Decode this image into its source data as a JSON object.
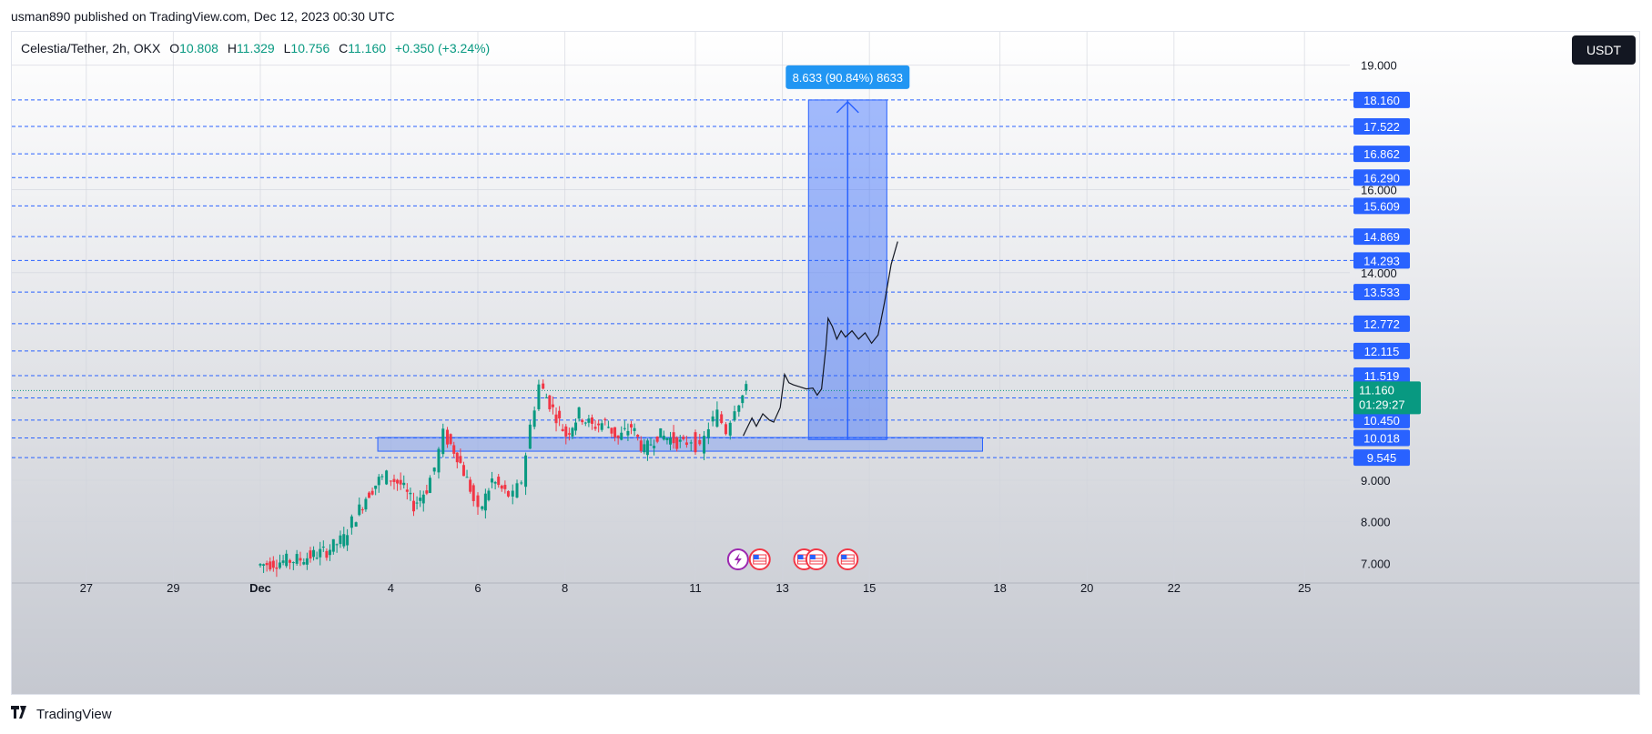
{
  "header": {
    "publish_line": "usman890 published on TradingView.com, Dec 12, 2023 00:30 UTC"
  },
  "legend": {
    "symbol": "Celestia/Tether, 2h, OKX",
    "o_label": "O",
    "o_value": "10.808",
    "h_label": "H",
    "h_value": "11.329",
    "l_label": "L",
    "l_value": "10.756",
    "c_label": "C",
    "c_value": "11.160",
    "change": "+0.350 (+3.24%)"
  },
  "currency_button": "USDT",
  "footer": {
    "brand": "TradingView",
    "logo_icon": "tradingview-logo-icon"
  },
  "colors": {
    "up": "#089981",
    "down": "#f23645",
    "accent": "#2962ff",
    "level_label": "#2962ff",
    "price_tag": "#089981"
  },
  "chart_data": {
    "type": "candlestick",
    "symbol": "Celestia/Tether",
    "interval": "2h",
    "exchange": "OKX",
    "y_axis": {
      "min": 6.7,
      "max": 19.1,
      "ticks": [
        "7.000",
        "8.000",
        "9.000",
        "14.000",
        "16.000",
        "19.000"
      ]
    },
    "x_axis": {
      "ticks": [
        {
          "label": "27",
          "day": -4
        },
        {
          "label": "29",
          "day": -2
        },
        {
          "label": "Dec",
          "day": 0
        },
        {
          "label": "4",
          "day": 3
        },
        {
          "label": "6",
          "day": 5
        },
        {
          "label": "8",
          "day": 7
        },
        {
          "label": "11",
          "day": 10
        },
        {
          "label": "13",
          "day": 12
        },
        {
          "label": "15",
          "day": 14
        },
        {
          "label": "18",
          "day": 17
        },
        {
          "label": "20",
          "day": 19
        },
        {
          "label": "22",
          "day": 21
        },
        {
          "label": "25",
          "day": 24
        }
      ]
    },
    "horizontal_levels": [
      "18.160",
      "17.522",
      "16.862",
      "16.290",
      "15.609",
      "14.869",
      "14.293",
      "13.533",
      "12.772",
      "12.115",
      "11.519",
      "10.984",
      "10.450",
      "10.018",
      "9.545"
    ],
    "last_price": {
      "value": "11.160",
      "countdown": "01:29:27"
    },
    "support_zone": {
      "low": 9.7,
      "high": 10.03,
      "start_day": 2.7,
      "end_day": 16.6
    },
    "projection_box": {
      "low": 9.98,
      "high": 18.16,
      "start_day": 12.6,
      "end_day": 14.4
    },
    "measure_label": "8.633 (90.84%) 8633",
    "projected_path": [
      [
        11.1,
        10.07
      ],
      [
        11.3,
        10.5
      ],
      [
        11.4,
        10.3
      ],
      [
        11.55,
        10.6
      ],
      [
        11.7,
        10.45
      ],
      [
        11.8,
        10.4
      ],
      [
        11.95,
        10.75
      ],
      [
        12.05,
        11.55
      ],
      [
        12.15,
        11.35
      ],
      [
        12.25,
        11.3
      ],
      [
        12.4,
        11.25
      ],
      [
        12.55,
        11.2
      ],
      [
        12.7,
        11.22
      ],
      [
        12.8,
        11.05
      ],
      [
        12.9,
        11.2
      ],
      [
        13.0,
        12.2
      ],
      [
        13.05,
        12.9
      ],
      [
        13.15,
        12.7
      ],
      [
        13.25,
        12.4
      ],
      [
        13.35,
        12.6
      ],
      [
        13.45,
        12.45
      ],
      [
        13.6,
        12.6
      ],
      [
        13.75,
        12.4
      ],
      [
        13.9,
        12.55
      ],
      [
        14.05,
        12.3
      ],
      [
        14.2,
        12.5
      ],
      [
        14.35,
        13.3
      ],
      [
        14.5,
        14.2
      ],
      [
        14.65,
        14.75
      ]
    ],
    "event_icons": [
      {
        "day": 10.98,
        "kind": "lightning"
      },
      {
        "day": 11.48,
        "kind": "us-flag"
      },
      {
        "day": 12.5,
        "kind": "us-flag"
      },
      {
        "day": 12.78,
        "kind": "us-flag"
      },
      {
        "day": 13.5,
        "kind": "us-flag"
      }
    ],
    "candles_daily_shape": [
      [
        0.0,
        6.95,
        7.0
      ],
      [
        0.3,
        7.0,
        7.05
      ],
      [
        0.6,
        7.05,
        7.1
      ],
      [
        1.0,
        7.1,
        7.2
      ],
      [
        1.3,
        7.2,
        7.3
      ],
      [
        1.6,
        7.3,
        7.6
      ],
      [
        2.0,
        7.6,
        8.0
      ],
      [
        2.2,
        8.0,
        8.6
      ],
      [
        2.5,
        8.6,
        9.0
      ],
      [
        2.8,
        9.0,
        9.1
      ],
      [
        3.0,
        9.1,
        8.9
      ],
      [
        3.3,
        8.9,
        8.4
      ],
      [
        3.6,
        8.4,
        8.8
      ],
      [
        3.9,
        8.8,
        9.3
      ],
      [
        4.1,
        9.3,
        10.1
      ],
      [
        4.3,
        10.1,
        9.6
      ],
      [
        4.6,
        9.6,
        8.8
      ],
      [
        4.9,
        8.8,
        8.2
      ],
      [
        5.1,
        8.2,
        9.0
      ],
      [
        5.4,
        9.0,
        8.7
      ],
      [
        5.7,
        8.7,
        8.6
      ],
      [
        5.9,
        8.6,
        9.0
      ],
      [
        6.1,
        9.0,
        10.3
      ],
      [
        6.3,
        10.3,
        11.3
      ],
      [
        6.5,
        11.3,
        10.7
      ],
      [
        6.8,
        10.7,
        10.1
      ],
      [
        7.1,
        10.1,
        10.6
      ],
      [
        7.4,
        10.6,
        10.3
      ],
      [
        7.7,
        10.3,
        10.4
      ],
      [
        8.0,
        10.4,
        10.0
      ],
      [
        8.3,
        10.0,
        10.3
      ],
      [
        8.6,
        10.3,
        9.7
      ],
      [
        8.9,
        9.7,
        10.1
      ],
      [
        9.2,
        10.1,
        10.0
      ],
      [
        9.5,
        10.0,
        9.85
      ],
      [
        9.8,
        9.85,
        10.0
      ],
      [
        10.0,
        10.0,
        9.7
      ],
      [
        10.2,
        9.7,
        10.3
      ],
      [
        10.4,
        10.3,
        10.6
      ],
      [
        10.6,
        10.6,
        10.2
      ],
      [
        10.8,
        10.2,
        10.8
      ],
      [
        11.0,
        10.8,
        11.16
      ]
    ]
  }
}
